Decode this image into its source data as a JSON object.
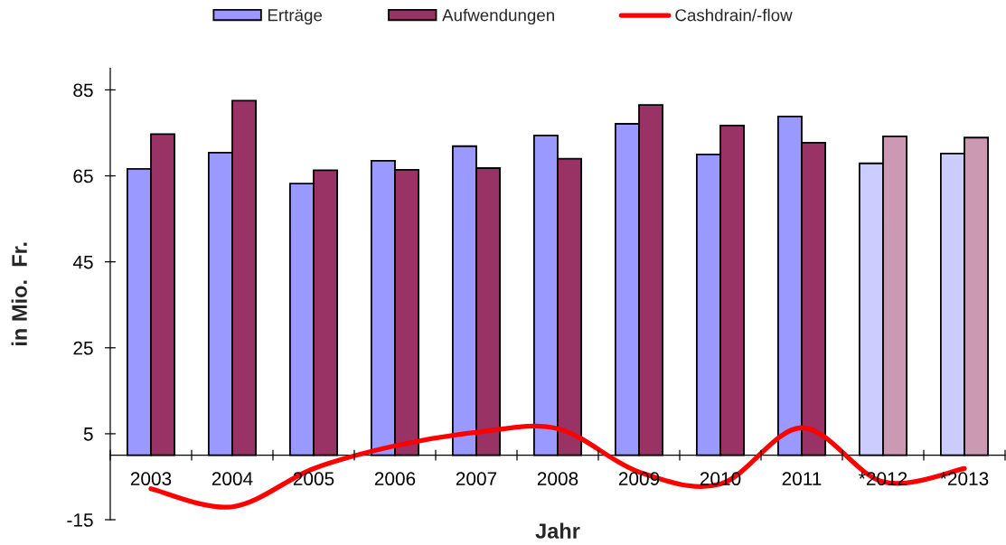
{
  "chart_data": {
    "type": "bar",
    "xlabel": "Jahr",
    "ylabel": "in Mio.  Fr.",
    "categories": [
      "2003",
      "2004",
      "2005",
      "2006",
      "2007",
      "2008",
      "2009",
      "2010",
      "2011",
      "*2012",
      "*2013"
    ],
    "series": [
      {
        "name": "Erträge",
        "color": "#9999ff",
        "colors": [
          "#9999ff",
          "#9999ff",
          "#9999ff",
          "#9999ff",
          "#9999ff",
          "#9999ff",
          "#9999ff",
          "#9999ff",
          "#9999ff",
          "#ccccff",
          "#ccccff"
        ],
        "values": [
          66.6,
          70.4,
          63.2,
          68.5,
          71.9,
          74.4,
          77.1,
          70.0,
          78.8,
          67.9,
          70.2
        ]
      },
      {
        "name": "Aufwendungen",
        "color": "#993366",
        "colors": [
          "#993366",
          "#993366",
          "#993366",
          "#993366",
          "#993366",
          "#993366",
          "#993366",
          "#993366",
          "#993366",
          "#cc99b2",
          "#cc99b2"
        ],
        "values": [
          74.7,
          82.5,
          66.3,
          66.4,
          66.8,
          69.0,
          81.5,
          76.7,
          72.7,
          74.2,
          73.9
        ]
      },
      {
        "name": "Cashdrain/-flow",
        "type": "line",
        "color": "#ff0000",
        "line_style": "solid",
        "values": [
          -7.8,
          -12.0,
          -3.1,
          2.2,
          5.3,
          6.2,
          -3.9,
          -6.7,
          6.4,
          -6.2,
          -3.1
        ]
      }
    ],
    "ylim": [
      -15,
      90
    ],
    "yticks": [
      -15,
      5,
      25,
      45,
      65,
      85
    ],
    "grid": false,
    "legend": "top"
  }
}
